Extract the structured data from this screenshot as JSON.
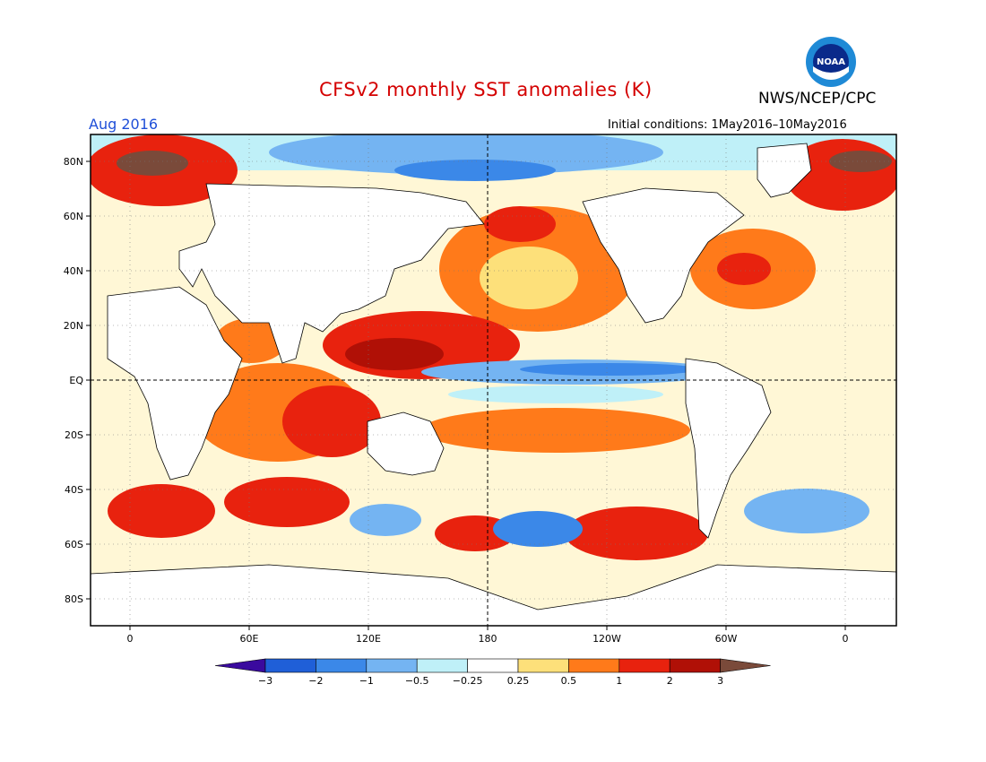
{
  "title": "CFSv2 monthly SST anomalies (K)",
  "agency": "NWS/NCEP/CPC",
  "valid_month": "Aug 2016",
  "initial_conditions": "Initial conditions: 1May2016–10May2016",
  "logo": {
    "icon": "noaa-logo-icon",
    "text": "NOAA"
  },
  "colors": {
    "title": "#d40000",
    "valid_month": "#1f4fd8",
    "land": "#ffffff",
    "frame": "#000000"
  },
  "map": {
    "lat_labels": [
      "80N",
      "60N",
      "40N",
      "20N",
      "EQ",
      "20S",
      "40S",
      "60S",
      "80S"
    ],
    "lon_labels": [
      "0",
      "60E",
      "120E",
      "180",
      "120W",
      "60W",
      "0"
    ]
  },
  "legend": {
    "labels": [
      "−3",
      "−2",
      "−1",
      "−0.5",
      "−0.25",
      "0.25",
      "0.5",
      "1",
      "2",
      "3"
    ],
    "colors": [
      "#3a0a9e",
      "#1f5fd8",
      "#3b88e8",
      "#74b4f2",
      "#bff0f8",
      "#ffffff",
      "#fde07a",
      "#ff7a1a",
      "#e8220e",
      "#b01006",
      "#7a4a3a"
    ]
  }
}
